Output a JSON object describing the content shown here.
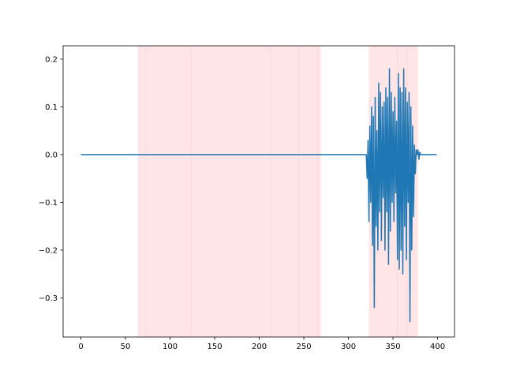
{
  "chart_data": {
    "type": "line",
    "series": [
      {
        "color": "#1f77b4",
        "x": [
          0,
          320,
          321,
          322,
          323,
          324,
          325,
          326,
          327,
          328,
          329,
          330,
          331,
          332,
          333,
          334,
          335,
          336,
          337,
          338,
          339,
          340,
          341,
          342,
          343,
          344,
          345,
          346,
          347,
          348,
          349,
          350,
          351,
          352,
          353,
          354,
          355,
          356,
          357,
          358,
          359,
          360,
          361,
          362,
          363,
          364,
          365,
          366,
          367,
          368,
          369,
          370,
          371,
          372,
          373,
          374,
          375,
          376,
          377,
          378,
          379,
          380,
          381,
          399
        ],
        "values": [
          0,
          0,
          -0.05,
          0.03,
          -0.14,
          0.06,
          -0.1,
          0.1,
          -0.19,
          0.08,
          -0.32,
          0.12,
          -0.15,
          0.05,
          -0.2,
          0.15,
          -0.12,
          0.13,
          -0.18,
          0.1,
          -0.09,
          0.11,
          -0.2,
          0.14,
          -0.12,
          0.12,
          -0.23,
          0.18,
          -0.16,
          0.13,
          -0.1,
          0.09,
          -0.14,
          0.12,
          -0.08,
          0.07,
          -0.22,
          0.17,
          -0.24,
          0.14,
          -0.2,
          0.13,
          -0.25,
          0.18,
          -0.15,
          0.14,
          -0.22,
          0.11,
          -0.1,
          0.13,
          -0.35,
          0.1,
          -0.2,
          0.06,
          -0.13,
          0.02,
          -0.04,
          0.01,
          0,
          0.01,
          -0.01,
          0.005,
          0,
          0
        ]
      }
    ],
    "spans": [
      [
        64,
        73
      ],
      [
        72.5,
        124
      ],
      [
        123.5,
        135
      ],
      [
        135,
        212.5
      ],
      [
        212,
        244.5
      ],
      [
        244,
        265.5
      ],
      [
        265,
        269
      ],
      [
        323,
        355.5
      ],
      [
        355,
        366
      ],
      [
        365.5,
        378
      ]
    ],
    "span_color": "#ff0000",
    "xlim": [
      -19.95,
      418.95
    ],
    "ylim": [
      -0.382,
      0.228
    ],
    "xticks": [
      0,
      50,
      100,
      150,
      200,
      250,
      300,
      350,
      400
    ],
    "yticks": [
      {
        "value": -0.3,
        "label": "−0.3"
      },
      {
        "value": -0.2,
        "label": "−0.2"
      },
      {
        "value": -0.1,
        "label": "−0.1"
      },
      {
        "value": 0,
        "label": "0.0"
      },
      0.1,
      0.2
    ]
  }
}
